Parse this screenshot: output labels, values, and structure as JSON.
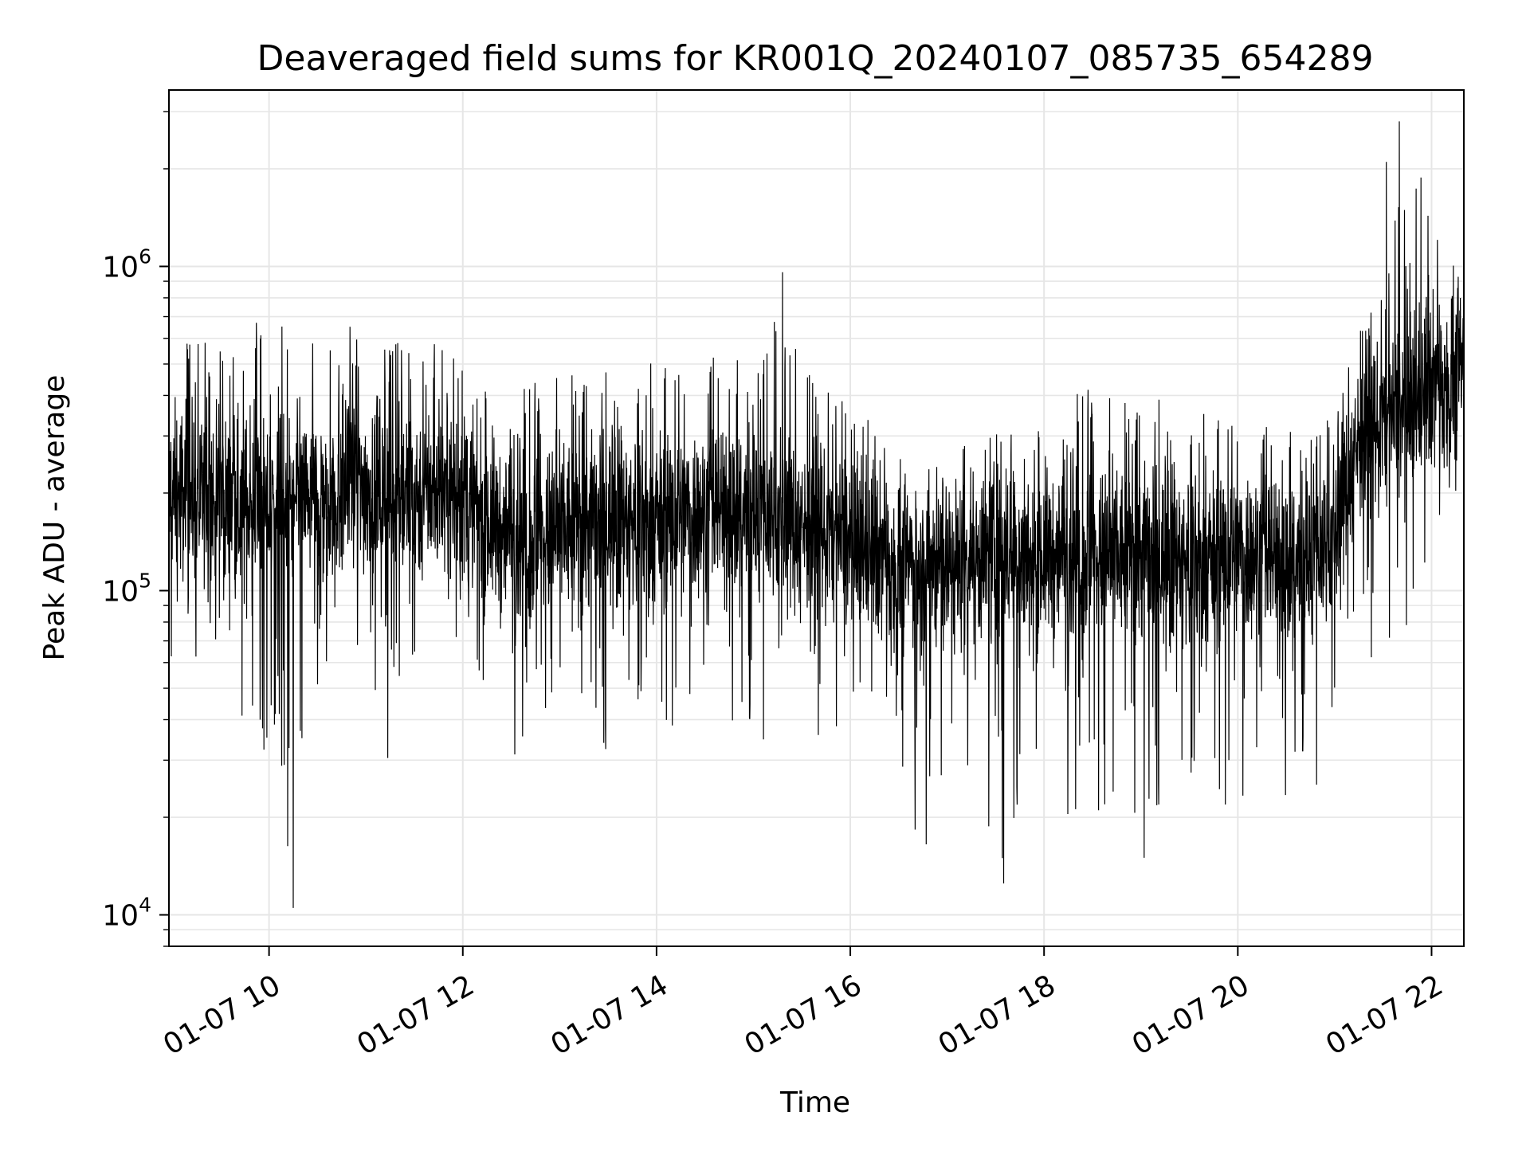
{
  "chart_data": {
    "type": "line",
    "title": "Deaveraged field sums for KR001Q_20240107_085735_654289",
    "xlabel": "Time",
    "ylabel": "Peak ADU - average",
    "y_scale": "log",
    "xlim": [
      "2024-01-07 08:58",
      "2024-01-07 22:20"
    ],
    "ylim": [
      8000,
      3500000
    ],
    "grid": true,
    "line_color": "#000000",
    "grid_color": "#e6e6e6",
    "x_ticks": [
      {
        "label": "01-07 10",
        "value": "2024-01-07 10:00"
      },
      {
        "label": "01-07 12",
        "value": "2024-01-07 12:00"
      },
      {
        "label": "01-07 14",
        "value": "2024-01-07 14:00"
      },
      {
        "label": "01-07 16",
        "value": "2024-01-07 16:00"
      },
      {
        "label": "01-07 18",
        "value": "2024-01-07 18:00"
      },
      {
        "label": "01-07 20",
        "value": "2024-01-07 20:00"
      },
      {
        "label": "01-07 22",
        "value": "2024-01-07 22:00"
      }
    ],
    "y_ticks": [
      {
        "base": "10",
        "exp": "4",
        "value": 10000
      },
      {
        "base": "10",
        "exp": "5",
        "value": 100000
      },
      {
        "base": "10",
        "exp": "6",
        "value": 1000000
      }
    ],
    "series": [
      {
        "x": [
          "2024-01-07 09:00",
          "2024-01-07 09:15",
          "2024-01-07 09:30",
          "2024-01-07 09:45",
          "2024-01-07 10:00",
          "2024-01-07 10:15",
          "2024-01-07 10:30",
          "2024-01-07 10:45",
          "2024-01-07 11:00",
          "2024-01-07 11:15",
          "2024-01-07 11:30",
          "2024-01-07 11:45",
          "2024-01-07 12:00",
          "2024-01-07 12:15",
          "2024-01-07 12:30",
          "2024-01-07 12:45",
          "2024-01-07 13:00",
          "2024-01-07 13:15",
          "2024-01-07 13:30",
          "2024-01-07 13:45",
          "2024-01-07 14:00",
          "2024-01-07 14:15",
          "2024-01-07 14:30",
          "2024-01-07 14:45",
          "2024-01-07 15:00",
          "2024-01-07 15:15",
          "2024-01-07 15:30",
          "2024-01-07 15:45",
          "2024-01-07 16:00",
          "2024-01-07 16:15",
          "2024-01-07 16:30",
          "2024-01-07 16:45",
          "2024-01-07 17:00",
          "2024-01-07 17:15",
          "2024-01-07 17:30",
          "2024-01-07 17:45",
          "2024-01-07 18:00",
          "2024-01-07 18:15",
          "2024-01-07 18:30",
          "2024-01-07 18:45",
          "2024-01-07 19:00",
          "2024-01-07 19:15",
          "2024-01-07 19:30",
          "2024-01-07 19:45",
          "2024-01-07 20:00",
          "2024-01-07 20:15",
          "2024-01-07 20:30",
          "2024-01-07 20:45",
          "2024-01-07 21:00",
          "2024-01-07 21:15",
          "2024-01-07 21:30",
          "2024-01-07 21:45",
          "2024-01-07 22:00",
          "2024-01-07 22:15"
        ],
        "y_center": [
          200000,
          190000,
          185000,
          180000,
          180000,
          185000,
          195000,
          200000,
          205000,
          200000,
          195000,
          205000,
          195000,
          165000,
          150000,
          140000,
          150000,
          160000,
          165000,
          160000,
          165000,
          170000,
          175000,
          185000,
          180000,
          170000,
          160000,
          150000,
          140000,
          130000,
          125000,
          120000,
          120000,
          125000,
          125000,
          125000,
          130000,
          130000,
          125000,
          125000,
          130000,
          125000,
          120000,
          125000,
          130000,
          130000,
          125000,
          130000,
          150000,
          300000,
          330000,
          360000,
          430000,
          500000
        ],
        "y_high": [
          650000,
          700000,
          620000,
          650000,
          740000,
          600000,
          650000,
          680000,
          720000,
          640000,
          660000,
          650000,
          640000,
          480000,
          450000,
          560000,
          520000,
          470000,
          480000,
          500000,
          520000,
          540000,
          560000,
          580000,
          500000,
          960000,
          560000,
          470000,
          420000,
          330000,
          300000,
          280000,
          300000,
          320000,
          340000,
          330000,
          380000,
          450000,
          560000,
          420000,
          380000,
          400000,
          360000,
          360000,
          380000,
          350000,
          330000,
          340000,
          420000,
          700000,
          900000,
          2800000,
          1500000,
          1100000
        ],
        "y_low": [
          36000,
          40000,
          55000,
          38000,
          30000,
          10500,
          50000,
          60000,
          36000,
          28000,
          45000,
          40000,
          60000,
          35000,
          29000,
          42000,
          45000,
          36000,
          32000,
          48000,
          30000,
          33000,
          45000,
          40000,
          25000,
          48000,
          55000,
          26000,
          38000,
          25000,
          20000,
          16500,
          22000,
          25000,
          12500,
          22000,
          22000,
          20000,
          22000,
          18000,
          15000,
          25000,
          26000,
          20000,
          16500,
          25000,
          22000,
          22000,
          30000,
          55000,
          60000,
          50000,
          60000,
          160000
        ],
        "downs": [
          {
            "x": "2024-01-07 10:15",
            "y": 10500
          },
          {
            "x": "2024-01-07 17:35",
            "y": 12500
          },
          {
            "x": "2024-01-07 19:02",
            "y": 15000
          },
          {
            "x": "2024-01-07 16:47",
            "y": 16500
          }
        ],
        "spikes": [
          {
            "x": "2024-01-07 21:40",
            "y": 2800000
          },
          {
            "x": "2024-01-07 21:32",
            "y": 2100000
          },
          {
            "x": "2024-01-07 15:18",
            "y": 960000
          }
        ]
      }
    ]
  }
}
